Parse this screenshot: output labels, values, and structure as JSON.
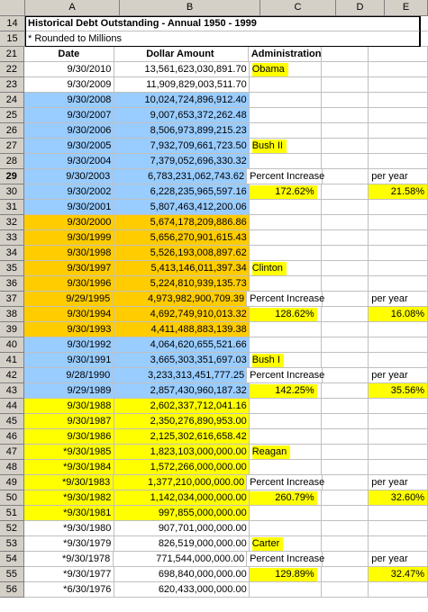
{
  "columns": [
    "A",
    "B",
    "C",
    "D",
    "E"
  ],
  "title_rows": [
    {
      "num": "14",
      "text": "Historical Debt Outstanding - Annual 1950 - 1999",
      "bold": true
    },
    {
      "num": "15",
      "text": "* Rounded to Millions",
      "bold": false
    }
  ],
  "header_row": {
    "num": "21",
    "date": "Date",
    "amount": "Dollar Amount",
    "admin": "Administration"
  },
  "rows": [
    {
      "num": "22",
      "date": "9/30/2010",
      "amount": "13,561,623,030,891.70",
      "c": "Obama",
      "e": "",
      "color": "white",
      "cyellow": true,
      "eyellow": false
    },
    {
      "num": "23",
      "date": "9/30/2009",
      "amount": "11,909,829,003,511.70",
      "c": "",
      "e": "",
      "color": "white",
      "cyellow": false,
      "eyellow": false
    },
    {
      "num": "24",
      "date": "9/30/2008",
      "amount": "10,024,724,896,912.40",
      "c": "",
      "e": "",
      "color": "blue",
      "cyellow": false,
      "eyellow": false
    },
    {
      "num": "25",
      "date": "9/30/2007",
      "amount": "9,007,653,372,262.48",
      "c": "",
      "e": "",
      "color": "blue",
      "cyellow": false,
      "eyellow": false
    },
    {
      "num": "26",
      "date": "9/30/2006",
      "amount": "8,506,973,899,215.23",
      "c": "",
      "e": "",
      "color": "blue",
      "cyellow": false,
      "eyellow": false
    },
    {
      "num": "27",
      "date": "9/30/2005",
      "amount": "7,932,709,661,723.50",
      "c": "Bush II",
      "e": "",
      "color": "blue",
      "cyellow": true,
      "eyellow": false
    },
    {
      "num": "28",
      "date": "9/30/2004",
      "amount": "7,379,052,696,330.32",
      "c": "",
      "e": "",
      "color": "blue",
      "cyellow": false,
      "eyellow": false
    },
    {
      "num": "29",
      "date": "9/30/2003",
      "amount": "6,783,231,062,743.62",
      "c": "Percent Increase",
      "e": "per year",
      "color": "blue",
      "cyellow": false,
      "eyellow": false,
      "bold_num": true
    },
    {
      "num": "30",
      "date": "9/30/2002",
      "amount": "6,228,235,965,597.16",
      "c": "172.62%",
      "e": "21.58%",
      "color": "blue",
      "cyellow": true,
      "eyellow": true,
      "pct": true
    },
    {
      "num": "31",
      "date": "9/30/2001",
      "amount": "5,807,463,412,200.06",
      "c": "",
      "e": "",
      "color": "blue",
      "cyellow": false,
      "eyellow": false
    },
    {
      "num": "32",
      "date": "9/30/2000",
      "amount": "5,674,178,209,886.86",
      "c": "",
      "e": "",
      "color": "orange",
      "cyellow": false,
      "eyellow": false
    },
    {
      "num": "33",
      "date": "9/30/1999",
      "amount": "5,656,270,901,615.43",
      "c": "",
      "e": "",
      "color": "orange",
      "cyellow": false,
      "eyellow": false
    },
    {
      "num": "34",
      "date": "9/30/1998",
      "amount": "5,526,193,008,897.62",
      "c": "",
      "e": "",
      "color": "orange",
      "cyellow": false,
      "eyellow": false
    },
    {
      "num": "35",
      "date": "9/30/1997",
      "amount": "5,413,146,011,397.34",
      "c": "Clinton",
      "e": "",
      "color": "orange",
      "cyellow": true,
      "eyellow": false
    },
    {
      "num": "36",
      "date": "9/30/1996",
      "amount": "5,224,810,939,135.73",
      "c": "",
      "e": "",
      "color": "orange",
      "cyellow": false,
      "eyellow": false
    },
    {
      "num": "37",
      "date": "9/29/1995",
      "amount": "4,973,982,900,709.39",
      "c": "Percent Increase",
      "e": "per year",
      "color": "orange",
      "cyellow": false,
      "eyellow": false
    },
    {
      "num": "38",
      "date": "9/30/1994",
      "amount": "4,692,749,910,013.32",
      "c": "128.62%",
      "e": "16.08%",
      "color": "orange",
      "cyellow": true,
      "eyellow": true,
      "pct": true
    },
    {
      "num": "39",
      "date": "9/30/1993",
      "amount": "4,411,488,883,139.38",
      "c": "",
      "e": "",
      "color": "orange",
      "cyellow": false,
      "eyellow": false
    },
    {
      "num": "40",
      "date": "9/30/1992",
      "amount": "4,064,620,655,521.66",
      "c": "",
      "e": "",
      "color": "blue",
      "cyellow": false,
      "eyellow": false
    },
    {
      "num": "41",
      "date": "9/30/1991",
      "amount": "3,665,303,351,697.03",
      "c": "Bush I",
      "e": "",
      "color": "blue",
      "cyellow": true,
      "eyellow": false
    },
    {
      "num": "42",
      "date": "9/28/1990",
      "amount": "3,233,313,451,777.25",
      "c": "Percent Increase",
      "e": "per year",
      "color": "blue",
      "cyellow": false,
      "eyellow": false
    },
    {
      "num": "43",
      "date": "9/29/1989",
      "amount": "2,857,430,960,187.32",
      "c": "142.25%",
      "e": "35.56%",
      "color": "blue",
      "cyellow": true,
      "eyellow": true,
      "pct": true
    },
    {
      "num": "44",
      "date": "9/30/1988",
      "amount": "2,602,337,712,041.16",
      "c": "",
      "e": "",
      "color": "yellow",
      "cyellow": false,
      "eyellow": false
    },
    {
      "num": "45",
      "date": "9/30/1987",
      "amount": "2,350,276,890,953.00",
      "c": "",
      "e": "",
      "color": "yellow",
      "cyellow": false,
      "eyellow": false
    },
    {
      "num": "46",
      "date": "9/30/1986",
      "amount": "2,125,302,616,658.42",
      "c": "",
      "e": "",
      "color": "yellow",
      "cyellow": false,
      "eyellow": false
    },
    {
      "num": "47",
      "date": "*9/30/1985",
      "amount": "1,823,103,000,000.00",
      "c": "Reagan",
      "e": "",
      "color": "yellow",
      "cyellow": true,
      "eyellow": false
    },
    {
      "num": "48",
      "date": "*9/30/1984",
      "amount": "1,572,266,000,000.00",
      "c": "",
      "e": "",
      "color": "yellow",
      "cyellow": false,
      "eyellow": false
    },
    {
      "num": "49",
      "date": "*9/30/1983",
      "amount": "1,377,210,000,000.00",
      "c": "Percent Increase",
      "e": "per year",
      "color": "yellow",
      "cyellow": false,
      "eyellow": false
    },
    {
      "num": "50",
      "date": "*9/30/1982",
      "amount": "1,142,034,000,000.00",
      "c": "260.79%",
      "e": "32.60%",
      "color": "yellow",
      "cyellow": true,
      "eyellow": true,
      "pct": true
    },
    {
      "num": "51",
      "date": "*9/30/1981",
      "amount": "997,855,000,000.00",
      "c": "",
      "e": "",
      "color": "yellow",
      "cyellow": false,
      "eyellow": false
    },
    {
      "num": "52",
      "date": "*9/30/1980",
      "amount": "907,701,000,000.00",
      "c": "",
      "e": "",
      "color": "white",
      "cyellow": false,
      "eyellow": false
    },
    {
      "num": "53",
      "date": "*9/30/1979",
      "amount": "826,519,000,000.00",
      "c": "Carter",
      "e": "",
      "color": "white",
      "cyellow": true,
      "eyellow": false
    },
    {
      "num": "54",
      "date": "*9/30/1978",
      "amount": "771,544,000,000.00",
      "c": "Percent Increase",
      "e": "per year",
      "color": "white",
      "cyellow": false,
      "eyellow": false
    },
    {
      "num": "55",
      "date": "*9/30/1977",
      "amount": "698,840,000,000.00",
      "c": "129.89%",
      "e": "32.47%",
      "color": "white",
      "cyellow": true,
      "eyellow": true,
      "pct": true
    },
    {
      "num": "56",
      "date": "*6/30/1976",
      "amount": "620,433,000,000.00",
      "c": "",
      "e": "",
      "color": "white",
      "cyellow": false,
      "eyellow": false
    }
  ],
  "colors": {
    "blue": "#99ccff",
    "orange": "#ffcc00",
    "yellow": "#ffff00",
    "header_gray": "#d4d0c8"
  }
}
